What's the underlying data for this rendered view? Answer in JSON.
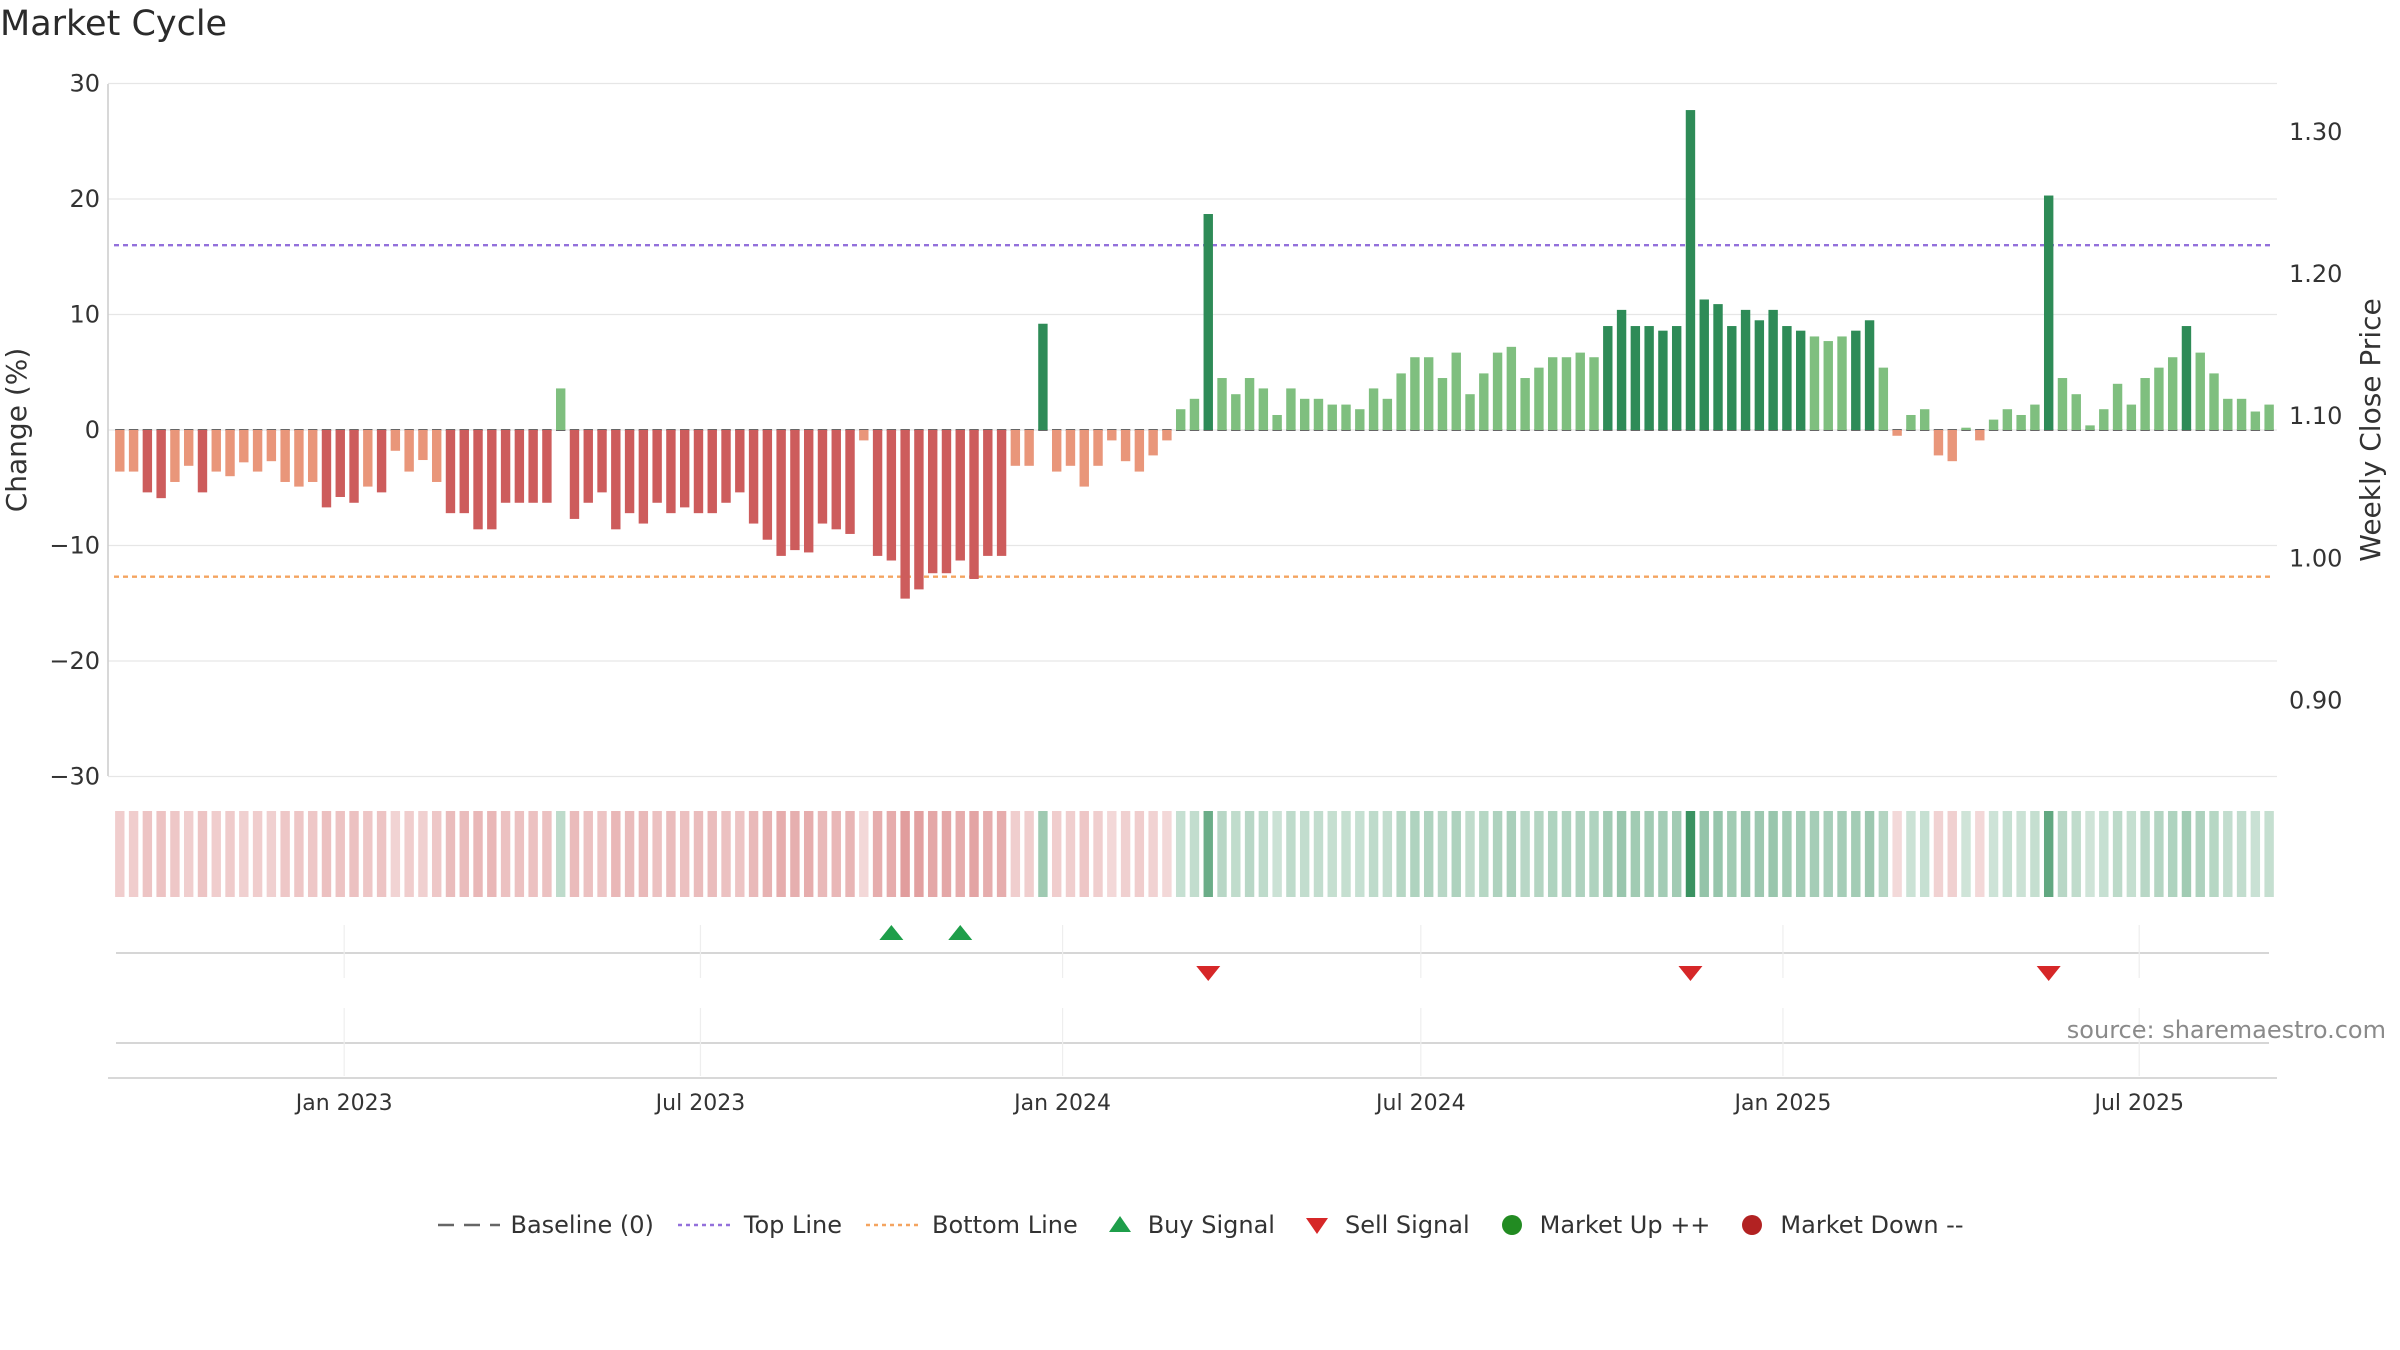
{
  "title": "Market Cycle",
  "source_text": "source: sharemaestro.com",
  "colors": {
    "strong_up": "#2e8b57",
    "up": "#7fbf7f",
    "strong_down": "#cd5c5c",
    "down": "#e9967a",
    "top_line": "#9370db",
    "bottom_line": "#f4a460",
    "baseline": "#666666",
    "buy": "#1e9e4a",
    "sell": "#d62728",
    "market_up": "#228b22",
    "market_down": "#b22222"
  },
  "legend": [
    {
      "label": "Baseline (0)",
      "icon": "dash-line-icon"
    },
    {
      "label": "Top Line",
      "icon": "dotted-purple-line-icon"
    },
    {
      "label": "Bottom Line",
      "icon": "dotted-orange-line-icon"
    },
    {
      "label": "Buy Signal",
      "icon": "up-triangle-icon"
    },
    {
      "label": "Sell Signal",
      "icon": "down-triangle-icon"
    },
    {
      "label": "Market Up ++",
      "icon": "green-dot-icon"
    },
    {
      "label": "Market Down --",
      "icon": "red-dot-icon"
    }
  ],
  "chart_data": {
    "type": "bar",
    "ylabel": "Change (%)",
    "y2label": "Weekly Close Price",
    "ylim": [
      -30,
      30
    ],
    "yticks": [
      "−30",
      "−20",
      "−10",
      "0",
      "10",
      "20",
      "30"
    ],
    "y2ticks": [
      "0.90",
      "1.00",
      "1.10",
      "1.20",
      "1.30"
    ],
    "y2lim": [
      0.8467,
      1.3339
    ],
    "xlim": [
      "2022-09-03",
      "2025-09-09"
    ],
    "xticks": [
      {
        "date": "2023-01-01",
        "label": "Jan 2023"
      },
      {
        "date": "2023-07-01",
        "label": "Jul 2023"
      },
      {
        "date": "2024-01-01",
        "label": "Jan 2024"
      },
      {
        "date": "2024-07-01",
        "label": "Jul 2024"
      },
      {
        "date": "2025-01-01",
        "label": "Jan 2025"
      },
      {
        "date": "2025-07-01",
        "label": "Jul 2025"
      }
    ],
    "first_week": "2022-09-09",
    "week_step_days": 7,
    "top_line": 16,
    "bottom_line": -12.7,
    "baseline": 0,
    "values": [
      -3.6,
      -3.6,
      -5.4,
      -5.9,
      -4.5,
      -3.1,
      -5.4,
      -3.6,
      -4.0,
      -2.8,
      -3.6,
      -2.7,
      -4.5,
      -4.9,
      -4.5,
      -6.7,
      -5.8,
      -6.3,
      -4.9,
      -5.4,
      -1.8,
      -3.6,
      -2.6,
      -4.5,
      -7.2,
      -7.2,
      -8.6,
      -8.6,
      -6.3,
      -6.3,
      -6.3,
      -6.3,
      3.6,
      -7.7,
      -6.3,
      -5.4,
      -8.6,
      -7.2,
      -8.1,
      -6.3,
      -7.2,
      -6.7,
      -7.2,
      -7.2,
      -6.3,
      -5.4,
      -8.1,
      -9.5,
      -10.9,
      -10.4,
      -10.6,
      -8.1,
      -8.6,
      -9.0,
      -0.9,
      -10.9,
      -11.3,
      -14.6,
      -13.8,
      -12.4,
      -12.4,
      -11.3,
      -12.9,
      -10.9,
      -10.9,
      -3.1,
      -3.1,
      9.2,
      -3.6,
      -3.1,
      -4.9,
      -3.1,
      -0.9,
      -2.7,
      -3.6,
      -2.2,
      -0.9,
      1.8,
      2.7,
      18.7,
      4.5,
      3.1,
      4.5,
      3.6,
      1.3,
      3.6,
      2.7,
      2.7,
      2.2,
      2.2,
      1.8,
      3.6,
      2.7,
      4.9,
      6.3,
      6.3,
      4.5,
      6.7,
      3.1,
      4.9,
      6.7,
      7.2,
      4.5,
      5.4,
      6.3,
      6.3,
      6.7,
      6.3,
      9.0,
      10.4,
      9.0,
      9.0,
      8.6,
      9.0,
      27.7,
      11.3,
      10.9,
      9.0,
      10.4,
      9.5,
      10.4,
      9.0,
      8.6,
      8.1,
      7.7,
      8.1,
      8.6,
      9.5,
      5.4,
      -0.5,
      1.3,
      1.8,
      -2.2,
      -2.7,
      0.2,
      -0.9,
      0.9,
      1.8,
      1.3,
      2.2,
      20.3,
      4.5,
      3.1,
      0.4,
      1.8,
      4.0,
      2.2,
      4.5,
      5.4,
      6.3,
      9.0,
      6.7,
      4.9,
      2.7,
      2.7,
      1.6,
      2.2
    ],
    "marker_values": [
      0,
      0,
      0,
      0,
      0,
      0,
      0,
      0,
      0,
      0,
      0,
      0,
      0,
      0,
      0,
      0,
      0,
      0,
      0,
      0,
      0,
      0,
      0,
      0,
      0,
      0,
      0,
      0,
      0,
      0,
      0,
      0,
      0,
      0,
      0,
      0,
      0,
      0,
      0,
      0,
      0,
      0,
      0,
      0,
      0,
      0,
      0,
      0,
      0,
      0,
      0,
      0,
      0,
      0,
      0,
      0,
      0,
      0,
      0,
      0,
      0,
      0,
      0,
      0,
      0,
      0,
      0,
      0,
      0,
      0,
      0,
      0,
      0,
      0,
      0,
      0,
      0,
      0,
      0,
      0,
      0,
      0,
      0,
      0,
      0,
      0,
      0,
      0,
      0,
      0,
      0,
      0,
      0,
      0,
      0,
      0,
      0,
      0,
      0,
      0,
      0,
      0,
      0,
      0,
      0,
      0,
      0,
      0,
      0,
      0,
      0,
      0,
      0,
      0,
      0,
      0,
      0,
      0,
      0,
      0,
      0,
      0,
      0,
      0,
      0,
      0,
      0,
      0,
      0,
      0,
      0,
      0,
      0,
      0,
      0,
      0,
      0,
      0,
      0,
      0,
      0,
      0,
      0,
      0,
      0,
      0,
      0,
      0,
      0,
      0,
      0,
      0,
      0,
      0,
      0,
      0,
      0,
      0,
      0
    ],
    "buy_signal_weeks": [
      56,
      61
    ],
    "sell_signal_weeks": [
      79,
      114,
      140
    ]
  }
}
